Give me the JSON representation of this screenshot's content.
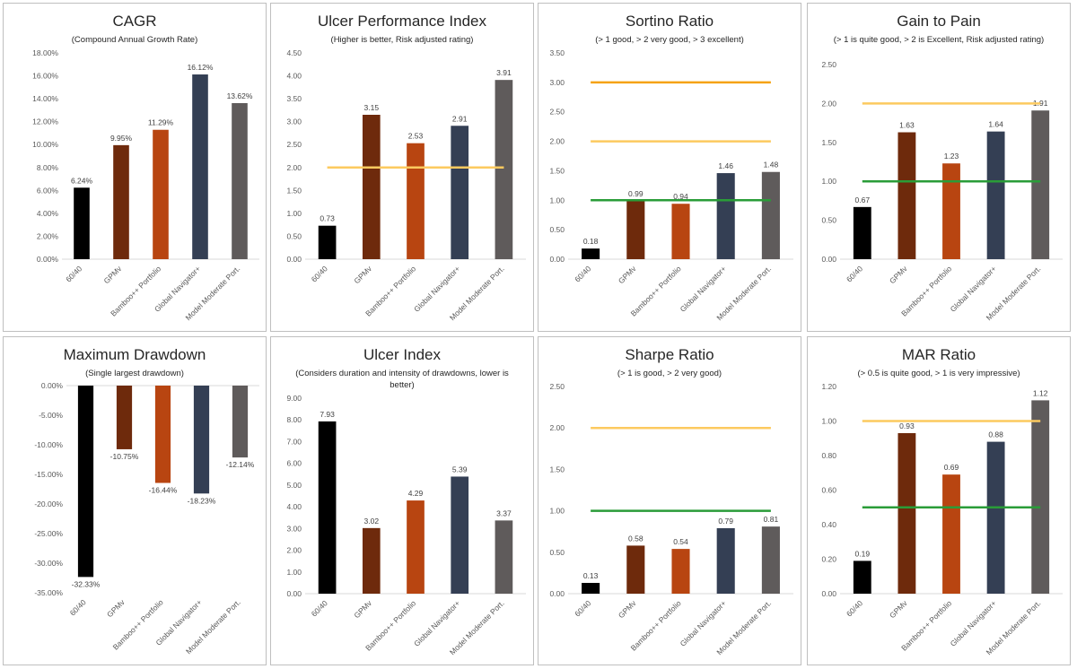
{
  "categories": [
    "60/40",
    "GPMv",
    "Bamboo++ Portfolio",
    "Global Navigator+",
    "Model Moderate Port."
  ],
  "colors": [
    "#000000",
    "#6e2a0c",
    "#b84511",
    "#343f54",
    "#5f5b5b"
  ],
  "reference_colors": {
    "yellow": "#fcca5f",
    "orange": "#f5a213",
    "green": "#2a9c38"
  },
  "chart_data": [
    {
      "type": "bar",
      "title": "CAGR",
      "subtitle": "(Compound Annual Growth Rate)",
      "values": [
        6.24,
        9.95,
        11.29,
        16.12,
        13.62
      ],
      "labels": [
        "6.24%",
        "9.95%",
        "11.29%",
        "16.12%",
        "13.62%"
      ],
      "ylim": [
        0,
        18
      ],
      "yticks": [
        "0.00%",
        "2.00%",
        "4.00%",
        "6.00%",
        "8.00%",
        "10.00%",
        "12.00%",
        "14.00%",
        "16.00%",
        "18.00%"
      ],
      "reference_lines": []
    },
    {
      "type": "bar",
      "title": "Ulcer Performance Index",
      "subtitle": "(Higher is better, Risk adjusted rating)",
      "values": [
        0.73,
        3.15,
        2.53,
        2.91,
        3.91
      ],
      "labels": [
        "0.73",
        "3.15",
        "2.53",
        "2.91",
        "3.91"
      ],
      "ylim": [
        0,
        4.5
      ],
      "yticks": [
        "0.00",
        "0.50",
        "1.00",
        "1.50",
        "2.00",
        "2.50",
        "3.00",
        "3.50",
        "4.00",
        "4.50"
      ],
      "reference_lines": [
        {
          "value": 2,
          "color": "yellow"
        }
      ]
    },
    {
      "type": "bar",
      "title": "Sortino Ratio",
      "subtitle": "(> 1 good, > 2 very good, > 3 excellent)",
      "values": [
        0.18,
        0.99,
        0.94,
        1.46,
        1.48
      ],
      "labels": [
        "0.18",
        "0.99",
        "0.94",
        "1.46",
        "1.48"
      ],
      "ylim": [
        0,
        3.5
      ],
      "yticks": [
        "0.00",
        "0.50",
        "1.00",
        "1.50",
        "2.00",
        "2.50",
        "3.00",
        "3.50"
      ],
      "reference_lines": [
        {
          "value": 3,
          "color": "orange"
        },
        {
          "value": 2,
          "color": "yellow"
        },
        {
          "value": 1,
          "color": "green"
        }
      ]
    },
    {
      "type": "bar",
      "title": "Gain to Pain",
      "subtitle": "(> 1 is quite good, > 2 is Excellent, Risk adjusted rating)",
      "values": [
        0.67,
        1.63,
        1.23,
        1.64,
        1.91
      ],
      "labels": [
        "0.67",
        "1.63",
        "1.23",
        "1.64",
        "1.91"
      ],
      "ylim": [
        0,
        2.5
      ],
      "yticks": [
        "0.00",
        "0.50",
        "1.00",
        "1.50",
        "2.00",
        "2.50"
      ],
      "reference_lines": [
        {
          "value": 2,
          "color": "yellow"
        },
        {
          "value": 1,
          "color": "green"
        }
      ]
    },
    {
      "type": "bar",
      "title": "Maximum Drawdown",
      "subtitle": "(Single largest drawdown)",
      "values": [
        -32.33,
        -10.75,
        -16.44,
        -18.23,
        -12.14
      ],
      "labels": [
        "-32.33%",
        "-10.75%",
        "-16.44%",
        "-18.23%",
        "-12.14%"
      ],
      "ylim": [
        -35,
        0
      ],
      "yticks": [
        "-35.00%",
        "-30.00%",
        "-25.00%",
        "-20.00%",
        "-15.00%",
        "-10.00%",
        "-5.00%",
        "0.00%"
      ],
      "reference_lines": []
    },
    {
      "type": "bar",
      "title": "Ulcer Index",
      "subtitle": "(Considers duration and intensity of drawdowns, lower is better)",
      "values": [
        7.93,
        3.02,
        4.29,
        5.39,
        3.37
      ],
      "labels": [
        "7.93",
        "3.02",
        "4.29",
        "5.39",
        "3.37"
      ],
      "ylim": [
        0,
        9
      ],
      "yticks": [
        "0.00",
        "1.00",
        "2.00",
        "3.00",
        "4.00",
        "5.00",
        "6.00",
        "7.00",
        "8.00",
        "9.00"
      ],
      "reference_lines": []
    },
    {
      "type": "bar",
      "title": "Sharpe Ratio",
      "subtitle": "(> 1 is good, > 2 very good)",
      "values": [
        0.13,
        0.58,
        0.54,
        0.79,
        0.81
      ],
      "labels": [
        "0.13",
        "0.58",
        "0.54",
        "0.79",
        "0.81"
      ],
      "ylim": [
        0,
        2.5
      ],
      "yticks": [
        "0.00",
        "0.50",
        "1.00",
        "1.50",
        "2.00",
        "2.50"
      ],
      "reference_lines": [
        {
          "value": 2,
          "color": "yellow"
        },
        {
          "value": 1,
          "color": "green"
        }
      ]
    },
    {
      "type": "bar",
      "title": "MAR Ratio",
      "subtitle": "(> 0.5 is quite good, > 1 is very impressive)",
      "values": [
        0.19,
        0.93,
        0.69,
        0.88,
        1.12
      ],
      "labels": [
        "0.19",
        "0.93",
        "0.69",
        "0.88",
        "1.12"
      ],
      "ylim": [
        0,
        1.2
      ],
      "yticks": [
        "0.00",
        "0.20",
        "0.40",
        "0.60",
        "0.80",
        "1.00",
        "1.20"
      ],
      "reference_lines": [
        {
          "value": 1,
          "color": "yellow"
        },
        {
          "value": 0.5,
          "color": "green"
        }
      ]
    }
  ]
}
